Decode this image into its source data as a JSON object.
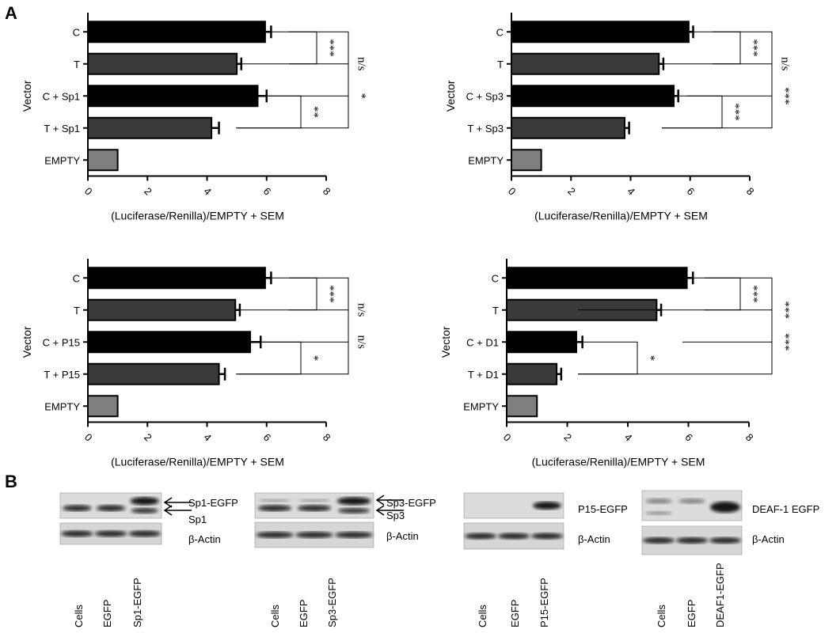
{
  "panel_labels": {
    "a": "A",
    "b": "B"
  },
  "chart_data": [
    {
      "type": "bar",
      "orientation": "horizontal",
      "categories": [
        "C",
        "T",
        "C + Sp1",
        "T + Sp1",
        "EMPTY"
      ],
      "values": [
        5.95,
        5.0,
        5.7,
        4.15,
        1.0
      ],
      "errors": [
        0.2,
        0.15,
        0.3,
        0.25,
        0.0
      ],
      "bar_colors": [
        "#000000",
        "#3a3a3a",
        "#000000",
        "#3a3a3a",
        "#7f7f7f"
      ],
      "xlabel": "(Luciferase/Renilla)/EMPTY + SEM",
      "ylabel": "Vector",
      "xlim": [
        0,
        8
      ],
      "xticks": [
        "0",
        "2",
        "4",
        "6",
        "8"
      ],
      "comparisons": [
        {
          "a": 0,
          "b": 1,
          "label": "***"
        },
        {
          "a": 0,
          "b": 2,
          "label": "n/s"
        },
        {
          "a": 2,
          "b": 3,
          "label": "**"
        },
        {
          "a": 1,
          "b": 3,
          "label": "*"
        }
      ]
    },
    {
      "type": "bar",
      "orientation": "horizontal",
      "categories": [
        "C",
        "T",
        "C + Sp3",
        "T + Sp3",
        "EMPTY"
      ],
      "values": [
        5.95,
        4.95,
        5.45,
        3.8,
        1.0
      ],
      "errors": [
        0.15,
        0.15,
        0.15,
        0.15,
        0.0
      ],
      "bar_colors": [
        "#000000",
        "#3a3a3a",
        "#000000",
        "#3a3a3a",
        "#7f7f7f"
      ],
      "xlabel": "(Luciferase/Renilla)/EMPTY + SEM",
      "ylabel": "Vector",
      "xlim": [
        0,
        8
      ],
      "xticks": [
        "0",
        "2",
        "4",
        "6",
        "8"
      ],
      "comparisons": [
        {
          "a": 0,
          "b": 1,
          "label": "***"
        },
        {
          "a": 0,
          "b": 2,
          "label": "n/s"
        },
        {
          "a": 2,
          "b": 3,
          "label": "***"
        },
        {
          "a": 1,
          "b": 3,
          "label": "***"
        }
      ]
    },
    {
      "type": "bar",
      "orientation": "horizontal",
      "categories": [
        "C",
        "T",
        "C + P15",
        "T + P15",
        "EMPTY"
      ],
      "values": [
        5.95,
        4.95,
        5.45,
        4.4,
        1.0
      ],
      "errors": [
        0.2,
        0.15,
        0.35,
        0.2,
        0.0
      ],
      "bar_colors": [
        "#000000",
        "#3a3a3a",
        "#000000",
        "#3a3a3a",
        "#7f7f7f"
      ],
      "xlabel": "(Luciferase/Renilla)/EMPTY + SEM",
      "ylabel": "Vector",
      "xlim": [
        0,
        8
      ],
      "xticks": [
        "0",
        "2",
        "4",
        "6",
        "8"
      ],
      "comparisons": [
        {
          "a": 0,
          "b": 1,
          "label": "***"
        },
        {
          "a": 0,
          "b": 2,
          "label": "n/s"
        },
        {
          "a": 2,
          "b": 3,
          "label": "*"
        },
        {
          "a": 1,
          "b": 3,
          "label": "n/s"
        }
      ]
    },
    {
      "type": "bar",
      "orientation": "horizontal",
      "categories": [
        "C",
        "T",
        "C + D1",
        "T + D1",
        "EMPTY"
      ],
      "values": [
        5.95,
        4.95,
        2.3,
        1.65,
        1.0
      ],
      "errors": [
        0.2,
        0.15,
        0.2,
        0.15,
        0.0
      ],
      "bar_colors": [
        "#000000",
        "#3a3a3a",
        "#000000",
        "#3a3a3a",
        "#7f7f7f"
      ],
      "xlabel": "(Luciferase/Renilla)/EMPTY + SEM",
      "ylabel": "Vector",
      "xlim": [
        0,
        8
      ],
      "xticks": [
        "0",
        "2",
        "4",
        "6",
        "8"
      ],
      "comparisons": [
        {
          "a": 0,
          "b": 1,
          "label": "***"
        },
        {
          "a": 0,
          "b": 2,
          "label": "***"
        },
        {
          "a": 2,
          "b": 3,
          "label": "*"
        },
        {
          "a": 1,
          "b": 3,
          "label": "***"
        }
      ]
    }
  ],
  "blots": [
    {
      "bands": [
        "Sp1-EGFP",
        "Sp1",
        "β-Actin"
      ],
      "lanes": [
        "Cells",
        "EGFP",
        "Sp1-EGFP"
      ]
    },
    {
      "bands": [
        "Sp3-EGFP",
        "Sp3",
        "β-Actin"
      ],
      "lanes": [
        "Cells",
        "EGFP",
        "Sp3-EGFP"
      ]
    },
    {
      "bands": [
        "P15-EGFP",
        "β-Actin"
      ],
      "lanes": [
        "Cells",
        "EGFP",
        "P15-EGFP"
      ]
    },
    {
      "bands": [
        "DEAF-1 EGFP",
        "β-Actin"
      ],
      "lanes": [
        "Cells",
        "EGFP",
        "DEAF1-EGFP"
      ]
    }
  ]
}
